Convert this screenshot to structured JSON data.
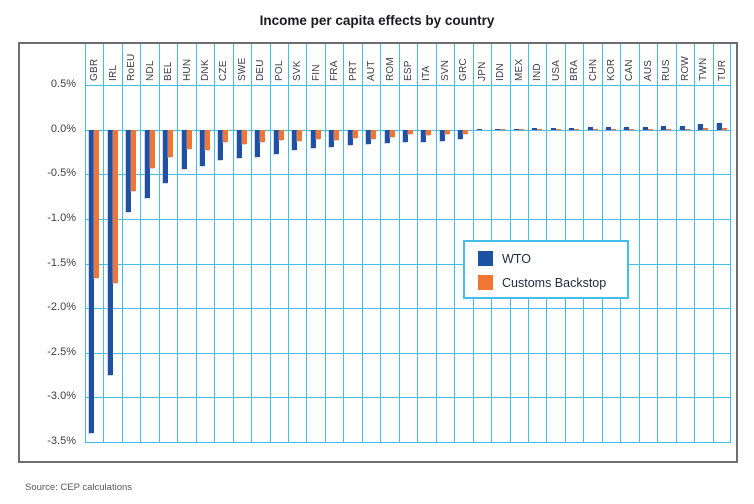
{
  "title": "Income per capita effects by country",
  "source_note": "Source: CEP calculations",
  "legend": {
    "items": [
      {
        "label": "WTO",
        "color": "#1f51a2"
      },
      {
        "label": "Customs Backstop",
        "color": "#f07636"
      }
    ]
  },
  "colors": {
    "bar_blue": "#1f51a2",
    "bar_orange": "#f07636",
    "grid": "#45bdeb",
    "frame": "#6e6e6e",
    "axis_text": "#404040",
    "title_text": "#181820"
  },
  "chart_data": {
    "type": "bar",
    "title": "Income per capita effects by country",
    "xlabel": "",
    "ylabel": "",
    "ylim": [
      -3.5,
      0.5
    ],
    "yticks": [
      0.5,
      0.0,
      -0.5,
      -1.0,
      -1.5,
      -2.0,
      -2.5,
      -3.0,
      -3.5
    ],
    "ytick_labels": [
      "0.5%",
      "0.0%",
      "-0.5%",
      "-1.0%",
      "-1.5%",
      "-2.0%",
      "-2.5%",
      "-3.0%",
      "-3.5%"
    ],
    "grid": true,
    "legend_position": "inside-center-right",
    "categories": [
      "GBR",
      "IRL",
      "RoEU",
      "NDL",
      "BEL",
      "HUN",
      "DNK",
      "CZE",
      "SWE",
      "DEU",
      "POL",
      "SVK",
      "FIN",
      "FRA",
      "PRT",
      "AUT",
      "ROM",
      "ESP",
      "ITA",
      "SVN",
      "GRC",
      "JPN",
      "IDN",
      "MEX",
      "IND",
      "USA",
      "BRA",
      "CHN",
      "KOR",
      "CAN",
      "AUS",
      "RUS",
      "ROW",
      "TWN",
      "TUR"
    ],
    "series": [
      {
        "name": "WTO",
        "color": "#1f51a2",
        "values": [
          -3.4,
          -2.75,
          -0.92,
          -0.76,
          -0.59,
          -0.44,
          -0.4,
          -0.34,
          -0.31,
          -0.3,
          -0.27,
          -0.22,
          -0.2,
          -0.19,
          -0.17,
          -0.16,
          -0.15,
          -0.14,
          -0.13,
          -0.12,
          -0.1,
          0.005,
          0.01,
          0.015,
          0.02,
          0.02,
          0.02,
          0.03,
          0.03,
          0.03,
          0.03,
          0.05,
          0.05,
          0.07,
          0.08
        ]
      },
      {
        "name": "Customs Backstop",
        "color": "#f07636",
        "values": [
          -1.66,
          -1.71,
          -0.68,
          -0.43,
          -0.3,
          -0.21,
          -0.22,
          -0.14,
          -0.16,
          -0.13,
          -0.11,
          -0.12,
          -0.1,
          -0.11,
          -0.09,
          -0.1,
          -0.08,
          -0.05,
          -0.06,
          -0.05,
          -0.04,
          0.0,
          0.005,
          0.005,
          0.01,
          0.01,
          0.01,
          0.01,
          0.01,
          0.01,
          0.01,
          0.015,
          0.015,
          0.02,
          0.02
        ]
      }
    ]
  }
}
